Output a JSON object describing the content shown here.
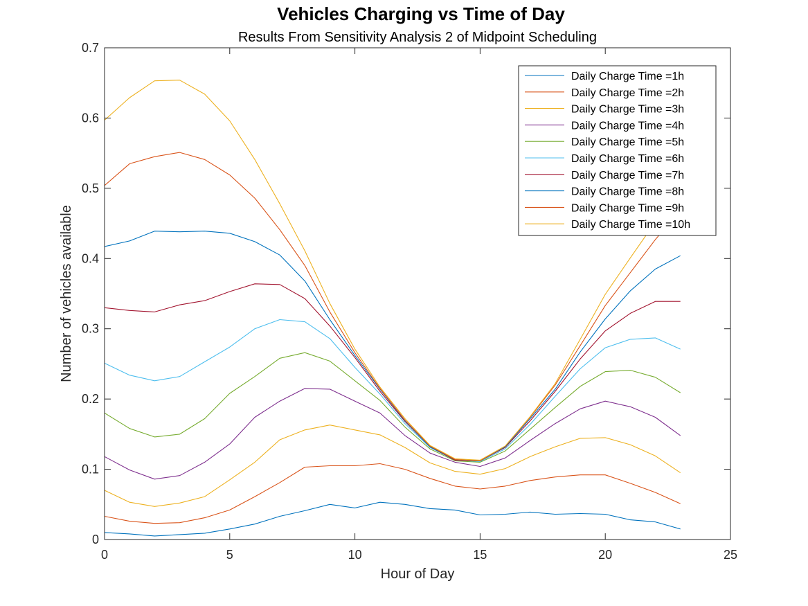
{
  "chart_data": {
    "type": "line",
    "title": "Vehicles Charging vs Time of Day",
    "subtitle": "Results From Sensitivity Analysis 2 of Midpoint Scheduling",
    "xlabel": "Hour of Day",
    "ylabel": "Number of vehicles available",
    "xlim": [
      0,
      25
    ],
    "ylim": [
      0,
      0.7
    ],
    "xticks": [
      0,
      5,
      10,
      15,
      20,
      25
    ],
    "yticks": [
      0,
      0.1,
      0.2,
      0.3,
      0.4,
      0.5,
      0.6,
      0.7
    ],
    "ytick_labels": [
      "0",
      "0.1",
      "0.2",
      "0.3",
      "0.4",
      "0.5",
      "0.6",
      "0.7"
    ],
    "grid": false,
    "legend_position": "top-right",
    "x": [
      0,
      1,
      2,
      3,
      4,
      5,
      6,
      7,
      8,
      9,
      10,
      11,
      12,
      13,
      14,
      15,
      16,
      17,
      18,
      19,
      20,
      21,
      22,
      23
    ],
    "series": [
      {
        "name": "Daily Charge Time =1h",
        "color": "#0072BD",
        "values": [
          0.01,
          0.008,
          0.005,
          0.007,
          0.009,
          0.015,
          0.022,
          0.033,
          0.041,
          0.05,
          0.045,
          0.053,
          0.05,
          0.044,
          0.042,
          0.035,
          0.036,
          0.039,
          0.036,
          0.037,
          0.036,
          0.028,
          0.025,
          0.015
        ]
      },
      {
        "name": "Daily Charge Time =2h",
        "color": "#D95319",
        "values": [
          0.033,
          0.026,
          0.023,
          0.024,
          0.031,
          0.042,
          0.061,
          0.081,
          0.103,
          0.105,
          0.105,
          0.108,
          0.1,
          0.087,
          0.076,
          0.072,
          0.076,
          0.084,
          0.089,
          0.092,
          0.092,
          0.08,
          0.067,
          0.051
        ]
      },
      {
        "name": "Daily Charge Time =3h",
        "color": "#EDB120",
        "values": [
          0.07,
          0.053,
          0.047,
          0.052,
          0.061,
          0.085,
          0.11,
          0.142,
          0.156,
          0.163,
          0.156,
          0.149,
          0.131,
          0.109,
          0.097,
          0.093,
          0.101,
          0.118,
          0.132,
          0.144,
          0.145,
          0.135,
          0.119,
          0.095
        ]
      },
      {
        "name": "Daily Charge Time =4h",
        "color": "#7E2F8E",
        "values": [
          0.118,
          0.099,
          0.086,
          0.091,
          0.11,
          0.136,
          0.174,
          0.197,
          0.215,
          0.214,
          0.197,
          0.18,
          0.148,
          0.123,
          0.11,
          0.104,
          0.116,
          0.141,
          0.165,
          0.186,
          0.197,
          0.189,
          0.174,
          0.148
        ]
      },
      {
        "name": "Daily Charge Time =5h",
        "color": "#77AC30",
        "values": [
          0.18,
          0.158,
          0.146,
          0.15,
          0.172,
          0.208,
          0.232,
          0.258,
          0.266,
          0.254,
          0.226,
          0.198,
          0.16,
          0.129,
          0.112,
          0.11,
          0.126,
          0.157,
          0.188,
          0.218,
          0.239,
          0.241,
          0.231,
          0.209
        ]
      },
      {
        "name": "Daily Charge Time =6h",
        "color": "#4DBEEE",
        "values": [
          0.251,
          0.234,
          0.226,
          0.232,
          0.253,
          0.274,
          0.3,
          0.313,
          0.31,
          0.286,
          0.245,
          0.207,
          0.165,
          0.131,
          0.113,
          0.111,
          0.129,
          0.164,
          0.204,
          0.243,
          0.273,
          0.285,
          0.287,
          0.271
        ]
      },
      {
        "name": "Daily Charge Time =7h",
        "color": "#A2142F",
        "values": [
          0.33,
          0.326,
          0.324,
          0.334,
          0.34,
          0.353,
          0.364,
          0.363,
          0.343,
          0.304,
          0.259,
          0.211,
          0.168,
          0.132,
          0.113,
          0.112,
          0.131,
          0.169,
          0.211,
          0.257,
          0.297,
          0.322,
          0.339,
          0.339
        ]
      },
      {
        "name": "Daily Charge Time =8h",
        "color": "#0072BD",
        "values": [
          0.417,
          0.425,
          0.439,
          0.438,
          0.439,
          0.436,
          0.424,
          0.405,
          0.368,
          0.313,
          0.262,
          0.214,
          0.169,
          0.132,
          0.114,
          0.112,
          0.132,
          0.172,
          0.214,
          0.267,
          0.314,
          0.354,
          0.385,
          0.404
        ]
      },
      {
        "name": "Daily Charge Time =9h",
        "color": "#D95319",
        "values": [
          0.504,
          0.535,
          0.545,
          0.551,
          0.541,
          0.519,
          0.486,
          0.441,
          0.39,
          0.324,
          0.266,
          0.215,
          0.17,
          0.133,
          0.114,
          0.112,
          0.133,
          0.174,
          0.22,
          0.276,
          0.333,
          0.38,
          0.427,
          0.468
        ]
      },
      {
        "name": "Daily Charge Time =10h",
        "color": "#EDB120",
        "values": [
          0.597,
          0.629,
          0.653,
          0.654,
          0.634,
          0.596,
          0.541,
          0.478,
          0.411,
          0.336,
          0.271,
          0.217,
          0.172,
          0.134,
          0.115,
          0.113,
          0.133,
          0.175,
          0.222,
          0.285,
          0.349,
          0.401,
          0.452,
          0.5
        ]
      }
    ]
  }
}
